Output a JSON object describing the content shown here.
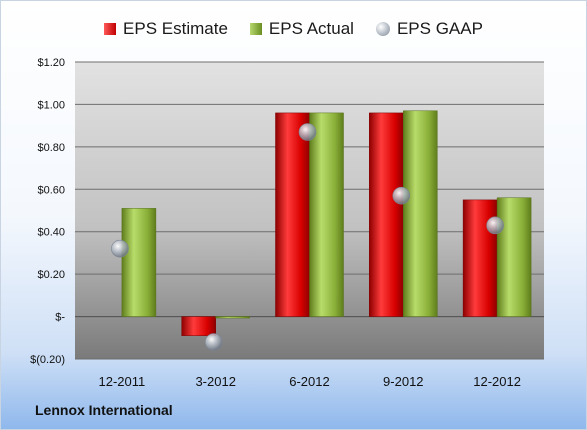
{
  "chart_data": {
    "type": "bar",
    "categories": [
      "12-2011",
      "3-2012",
      "6-2012",
      "9-2012",
      "12-2012"
    ],
    "series": [
      {
        "name": "EPS Estimate",
        "kind": "bar",
        "color": "#c00000",
        "values": [
          null,
          -0.09,
          0.96,
          0.96,
          0.55
        ]
      },
      {
        "name": "EPS Actual",
        "kind": "bar",
        "color": "#7a9a2a",
        "values": [
          0.51,
          0.0,
          0.96,
          0.97,
          0.56
        ]
      },
      {
        "name": "EPS GAAP",
        "kind": "marker",
        "color": "#9aa3ae",
        "values": [
          0.32,
          -0.12,
          0.87,
          0.57,
          0.43
        ]
      }
    ],
    "y_ticks": [
      {
        "value": 1.2,
        "label": "$1.20"
      },
      {
        "value": 1.0,
        "label": "$1.00"
      },
      {
        "value": 0.8,
        "label": "$0.80"
      },
      {
        "value": 0.6,
        "label": "$0.60"
      },
      {
        "value": 0.4,
        "label": "$0.40"
      },
      {
        "value": 0.2,
        "label": "$0.20"
      },
      {
        "value": 0.0,
        "label": "$-"
      },
      {
        "value": -0.2,
        "label": "$(0.20)"
      }
    ],
    "ylim": [
      -0.2,
      1.2
    ],
    "grid": true,
    "legend_position": "top"
  },
  "legend": {
    "estimate": "EPS Estimate",
    "actual": "EPS Actual",
    "gaap": "EPS GAAP"
  },
  "footer": {
    "company": "Lennox International"
  }
}
